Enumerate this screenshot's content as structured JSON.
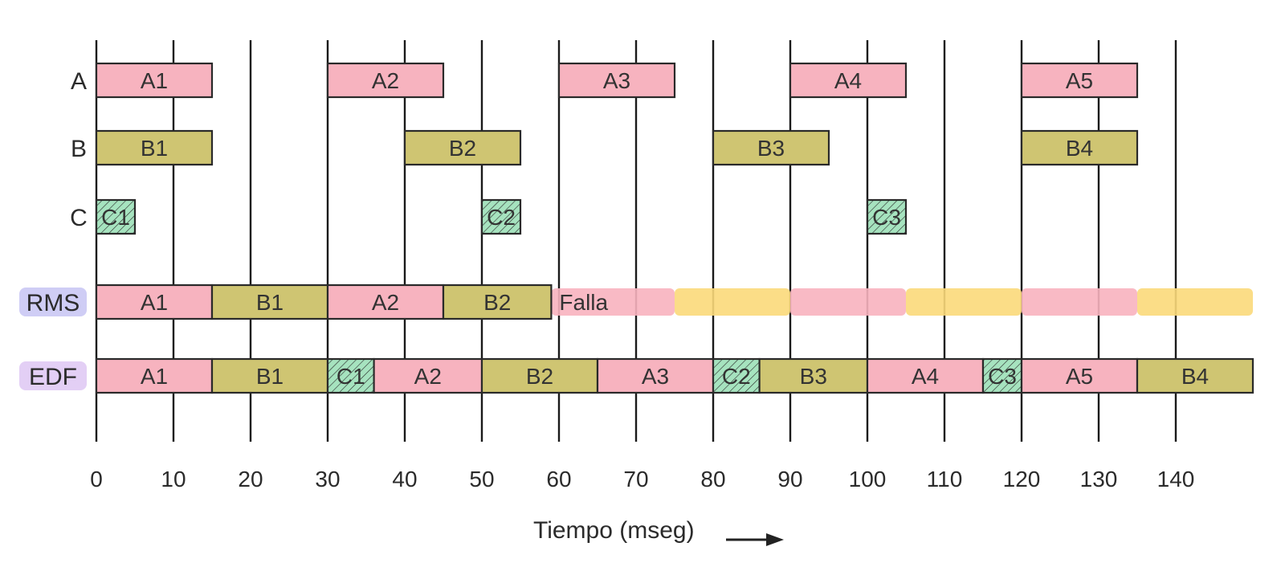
{
  "axis": {
    "title": "Tiempo (mseg)",
    "arrow_icon": "arrow-right-icon",
    "range": [
      0,
      150
    ],
    "gridlines": [
      0,
      10,
      20,
      30,
      40,
      50,
      60,
      70,
      80,
      90,
      100,
      110,
      120,
      130,
      140
    ],
    "ticks": [
      "0",
      "10",
      "20",
      "30",
      "40",
      "50",
      "60",
      "70",
      "80",
      "90",
      "100",
      "110",
      "120",
      "130",
      "140"
    ]
  },
  "colors": {
    "A": "#f7b3bf",
    "B": "#cfc572",
    "C": "#a6e3bf",
    "miss_A": "#f8b3bf",
    "miss_B": "#fbd97a",
    "rms_badge": "#cfcdf5",
    "edf_badge": "#e3cff5"
  },
  "rows": [
    {
      "key": "A",
      "label": "A",
      "badge": false,
      "segments": [
        {
          "label": "A1",
          "type": "A",
          "start": 0,
          "end": 15
        },
        {
          "label": "A2",
          "type": "A",
          "start": 30,
          "end": 45
        },
        {
          "label": "A3",
          "type": "A",
          "start": 60,
          "end": 75
        },
        {
          "label": "A4",
          "type": "A",
          "start": 90,
          "end": 105
        },
        {
          "label": "A5",
          "type": "A",
          "start": 120,
          "end": 135
        }
      ]
    },
    {
      "key": "B",
      "label": "B",
      "badge": false,
      "segments": [
        {
          "label": "B1",
          "type": "B",
          "start": 0,
          "end": 15
        },
        {
          "label": "B2",
          "type": "B",
          "start": 40,
          "end": 55
        },
        {
          "label": "B3",
          "type": "B",
          "start": 80,
          "end": 95
        },
        {
          "label": "B4",
          "type": "B",
          "start": 120,
          "end": 135
        }
      ]
    },
    {
      "key": "C",
      "label": "C",
      "badge": false,
      "segments": [
        {
          "label": "C1",
          "type": "C",
          "start": 0,
          "end": 5
        },
        {
          "label": "C2",
          "type": "C",
          "start": 50,
          "end": 55
        },
        {
          "label": "C3",
          "type": "C",
          "start": 100,
          "end": 105
        }
      ]
    },
    {
      "key": "RMS",
      "label": "RMS",
      "badge": true,
      "segments": [
        {
          "label": "A1",
          "type": "A",
          "start": 0,
          "end": 15
        },
        {
          "label": "B1",
          "type": "B",
          "start": 15,
          "end": 30
        },
        {
          "label": "A2",
          "type": "A",
          "start": 30,
          "end": 45
        },
        {
          "label": "B2",
          "type": "B",
          "start": 45,
          "end": 59
        }
      ],
      "failure_label": "Falla",
      "failure": [
        {
          "type": "miss_A",
          "start": 59,
          "end": 75
        },
        {
          "type": "miss_B",
          "start": 75,
          "end": 90
        },
        {
          "type": "miss_A",
          "start": 90,
          "end": 105
        },
        {
          "type": "miss_B",
          "start": 105,
          "end": 120
        },
        {
          "type": "miss_A",
          "start": 120,
          "end": 135
        },
        {
          "type": "miss_B",
          "start": 135,
          "end": 150
        }
      ]
    },
    {
      "key": "EDF",
      "label": "EDF",
      "badge": true,
      "segments": [
        {
          "label": "A1",
          "type": "A",
          "start": 0,
          "end": 15
        },
        {
          "label": "B1",
          "type": "B",
          "start": 15,
          "end": 30
        },
        {
          "label": "C1",
          "type": "C",
          "start": 30,
          "end": 36
        },
        {
          "label": "A2",
          "type": "A",
          "start": 36,
          "end": 50
        },
        {
          "label": "B2",
          "type": "B",
          "start": 50,
          "end": 65
        },
        {
          "label": "A3",
          "type": "A",
          "start": 65,
          "end": 80
        },
        {
          "label": "C2",
          "type": "C",
          "start": 80,
          "end": 86
        },
        {
          "label": "B3",
          "type": "B",
          "start": 86,
          "end": 100
        },
        {
          "label": "A4",
          "type": "A",
          "start": 100,
          "end": 115
        },
        {
          "label": "C3",
          "type": "C",
          "start": 115,
          "end": 120
        },
        {
          "label": "A5",
          "type": "A",
          "start": 120,
          "end": 135
        },
        {
          "label": "B4",
          "type": "B",
          "start": 135,
          "end": 150
        }
      ]
    }
  ]
}
